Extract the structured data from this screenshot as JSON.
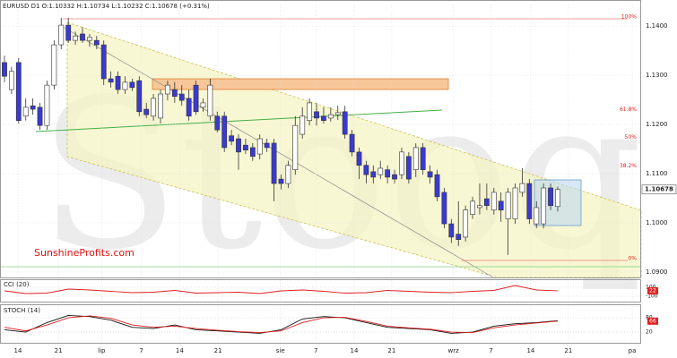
{
  "chart_data": [
    {
      "type": "candlestick",
      "header": "EURUSD  D1  O:1.10332  H:1.10734  L:1.10232  C:1.10678  (+0.31%)",
      "watermark": "Stooq",
      "annotation": "SunshineProfits.com",
      "up_color": "#ffffff",
      "down_color": "#3a3ad0",
      "open": [
        1.1326,
        1.1271,
        1.1326,
        1.1217,
        1.1238,
        1.1235,
        1.1198,
        1.128,
        1.1362,
        1.1402,
        1.1371,
        1.1384,
        1.1371,
        1.1371,
        1.1362,
        1.1293,
        1.1298,
        1.1271,
        1.1286,
        1.1289,
        1.1231,
        1.1217,
        1.1213,
        1.1262,
        1.1271,
        1.1262,
        1.1253,
        1.128,
        1.1235,
        1.1217,
        1.1217,
        1.1217,
        1.1177,
        1.1171,
        1.1158,
        1.1153,
        1.114,
        1.1162,
        1.1162,
        1.1089,
        1.108,
        1.1108,
        1.118,
        1.1208,
        1.1226,
        1.1217,
        1.1213,
        1.122,
        1.1226,
        1.118,
        1.1144,
        1.1117,
        1.1104,
        1.1098,
        1.1108,
        1.1098,
        1.1098,
        1.1135,
        1.1108,
        1.1153,
        1.1104,
        1.1098,
        1.1062,
        1.0998,
        1.0977,
        1.0971,
        1.1017,
        1.1031,
        1.1049,
        1.1026,
        1.1044,
        1.1008,
        1.1008,
        1.1062,
        1.108,
        1.0998,
        1.0998,
        1.1071,
        1.10332
      ],
      "high": [
        1.134,
        1.1317,
        1.1335,
        1.1253,
        1.1253,
        1.1244,
        1.1289,
        1.1371,
        1.1417,
        1.1417,
        1.1389,
        1.1398,
        1.1384,
        1.138,
        1.1371,
        1.1308,
        1.1308,
        1.1298,
        1.1293,
        1.1298,
        1.1244,
        1.1262,
        1.1271,
        1.1289,
        1.1286,
        1.128,
        1.1271,
        1.1289,
        1.1253,
        1.1293,
        1.1226,
        1.1226,
        1.1189,
        1.118,
        1.1171,
        1.1162,
        1.118,
        1.1171,
        1.1171,
        1.1098,
        1.1126,
        1.1217,
        1.1235,
        1.1253,
        1.1244,
        1.1235,
        1.1235,
        1.1238,
        1.1238,
        1.1189,
        1.1153,
        1.1126,
        1.1117,
        1.1126,
        1.1117,
        1.1108,
        1.1153,
        1.1144,
        1.1162,
        1.1162,
        1.1117,
        1.1108,
        1.1071,
        1.1008,
        1.1044,
        1.1035,
        1.1053,
        1.108,
        1.108,
        1.1071,
        1.1062,
        1.1071,
        1.108,
        1.1111,
        1.1089,
        1.1044,
        1.108,
        1.108,
        1.10734
      ],
      "low": [
        1.1286,
        1.1262,
        1.1202,
        1.1208,
        1.122,
        1.1189,
        1.1189,
        1.1271,
        1.1353,
        1.1366,
        1.1362,
        1.1366,
        1.1358,
        1.1353,
        1.128,
        1.1275,
        1.1262,
        1.1262,
        1.1268,
        1.1217,
        1.1213,
        1.1208,
        1.1202,
        1.1249,
        1.1244,
        1.1238,
        1.1208,
        1.122,
        1.1226,
        1.1208,
        1.1184,
        1.1144,
        1.1158,
        1.1108,
        1.114,
        1.1126,
        1.1129,
        1.1144,
        1.1044,
        1.1068,
        1.1071,
        1.1098,
        1.1171,
        1.1198,
        1.1198,
        1.1202,
        1.1206,
        1.1209,
        1.1171,
        1.1135,
        1.1089,
        1.108,
        1.108,
        1.1089,
        1.108,
        1.108,
        1.1089,
        1.108,
        1.1093,
        1.1098,
        1.108,
        1.1044,
        1.0989,
        1.0959,
        1.0953,
        1.0962,
        1.1008,
        1.1017,
        1.1026,
        1.1017,
        1.1002,
        1.0935,
        1.0998,
        1.1053,
        1.0998,
        1.0989,
        1.0989,
        1.1026,
        1.10232
      ],
      "close": [
        1.1298,
        1.1308,
        1.1208,
        1.1235,
        1.1231,
        1.1198,
        1.128,
        1.1362,
        1.1402,
        1.1371,
        1.138,
        1.1371,
        1.1377,
        1.1362,
        1.1293,
        1.1286,
        1.1271,
        1.1286,
        1.1275,
        1.1226,
        1.122,
        1.1253,
        1.1262,
        1.128,
        1.1257,
        1.1249,
        1.1217,
        1.1226,
        1.1244,
        1.128,
        1.1189,
        1.1153,
        1.1166,
        1.1144,
        1.1148,
        1.1135,
        1.1171,
        1.1153,
        1.108,
        1.108,
        1.1117,
        1.1198,
        1.1217,
        1.1244,
        1.1213,
        1.1208,
        1.122,
        1.1224,
        1.118,
        1.1144,
        1.1117,
        1.1098,
        1.1093,
        1.1111,
        1.1093,
        1.1089,
        1.1144,
        1.1089,
        1.1153,
        1.1108,
        1.1093,
        1.1053,
        1.0998,
        1.0971,
        1.0966,
        1.1026,
        1.1044,
        1.1035,
        1.1035,
        1.1062,
        1.1026,
        1.1062,
        1.1071,
        1.108,
        1.1008,
        1.1031,
        1.1071,
        1.1035,
        1.10678
      ],
      "xlim": [
        -0.63,
        89.76
      ],
      "xticks": [
        {
          "value": 1.9,
          "label": "14"
        },
        {
          "value": 7.6,
          "label": "21"
        },
        {
          "value": 13.7,
          "label": "lip"
        },
        {
          "value": 19.3,
          "label": "7"
        },
        {
          "value": 24.7,
          "label": "14"
        },
        {
          "value": 30.1,
          "label": "21"
        },
        {
          "value": 38.9,
          "label": "sie"
        },
        {
          "value": 43.9,
          "label": "7"
        },
        {
          "value": 49.3,
          "label": "14"
        },
        {
          "value": 54.6,
          "label": "21"
        },
        {
          "value": 63.3,
          "label": "wrz"
        },
        {
          "value": 68.6,
          "label": "7"
        },
        {
          "value": 74.2,
          "label": "14"
        },
        {
          "value": 79.5,
          "label": "21"
        },
        {
          "value": 88.5,
          "label": "pa"
        }
      ],
      "ylim": [
        1.0889,
        1.1444
      ],
      "yticks": [
        {
          "value": 1.14,
          "label": "1.1400"
        },
        {
          "value": 1.13,
          "label": "1.1300"
        },
        {
          "value": 1.12,
          "label": "1.1200"
        },
        {
          "value": 1.11,
          "label": "1.1100"
        },
        {
          "value": 1.1,
          "label": "1.1000"
        },
        {
          "value": 1.09,
          "label": "1.0900"
        }
      ],
      "fib_levels": [
        {
          "label": "100%",
          "value": 1.1415
        },
        {
          "label": "61.8%",
          "value": 1.1227
        },
        {
          "label": "50%",
          "value": 1.117
        },
        {
          "label": "38.2%",
          "value": 1.1112
        },
        {
          "label": "0%",
          "value": 1.0924
        }
      ]
    },
    {
      "type": "line",
      "title": "CCI (20)",
      "x": [
        0,
        3,
        6,
        9,
        12,
        15,
        18,
        21,
        24,
        27,
        30,
        33,
        36,
        39,
        42,
        45,
        48,
        51,
        54,
        57,
        60,
        63,
        66,
        69,
        72,
        75,
        78
      ],
      "series": [
        {
          "color": "#e02020",
          "values": [
            20,
            -40,
            -30,
            60,
            40,
            10,
            -20,
            -10,
            30,
            -30,
            -20,
            -10,
            -40,
            20,
            40,
            10,
            -30,
            -20,
            30,
            10,
            -10,
            -20,
            10,
            30,
            140,
            40,
            22
          ]
        }
      ],
      "ylim": [
        -220,
        260
      ],
      "yticks": [
        100,
        -100
      ]
    },
    {
      "type": "line",
      "title": "STOCH (14)",
      "x": [
        0,
        3,
        6,
        9,
        12,
        15,
        18,
        21,
        24,
        27,
        30,
        33,
        36,
        39,
        42,
        45,
        48,
        51,
        54,
        57,
        60,
        63,
        66,
        69,
        72,
        75,
        78
      ],
      "series": [
        {
          "color": "#111111",
          "values": [
            30,
            20,
            60,
            90,
            85,
            70,
            40,
            35,
            50,
            30,
            25,
            20,
            15,
            30,
            75,
            85,
            80,
            60,
            40,
            35,
            30,
            15,
            20,
            45,
            55,
            60,
            68
          ]
        },
        {
          "color": "#e02020",
          "values": [
            40,
            25,
            50,
            80,
            88,
            78,
            50,
            40,
            45,
            35,
            28,
            22,
            18,
            25,
            60,
            80,
            82,
            65,
            45,
            38,
            32,
            20,
            18,
            38,
            50,
            58,
            66
          ]
        }
      ],
      "ylim": [
        -21,
        129
      ],
      "yticks": [
        80,
        20
      ]
    }
  ]
}
